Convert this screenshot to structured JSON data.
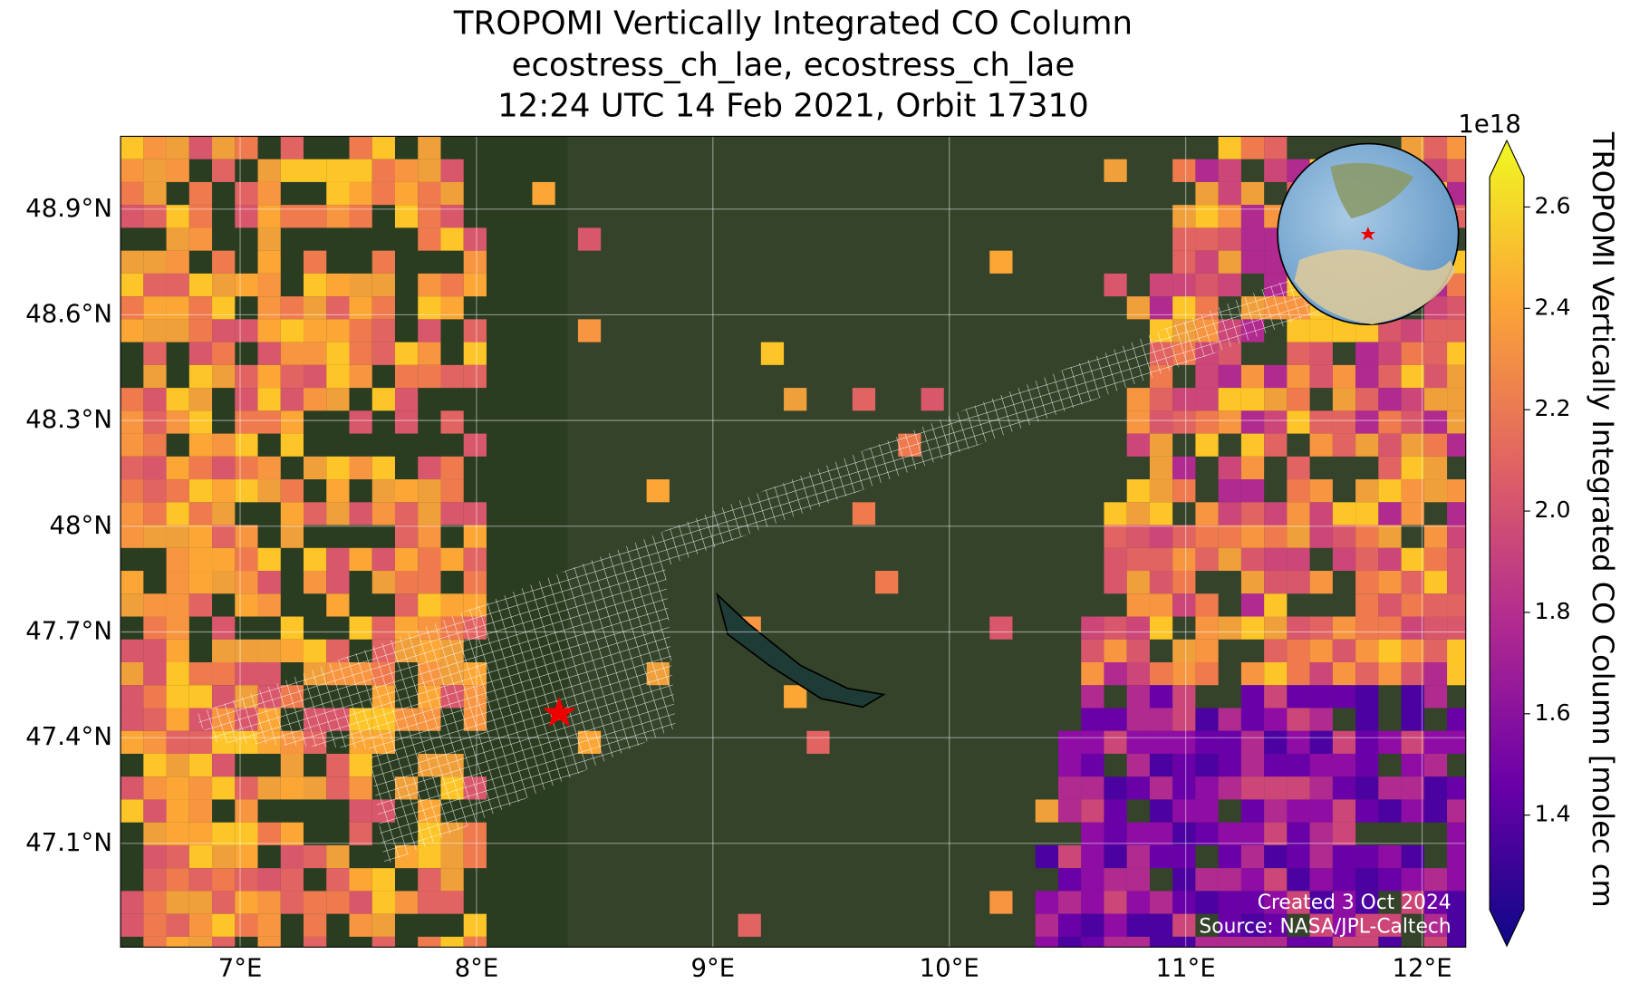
{
  "title": [
    "TROPOMI Vertically Integrated CO Column",
    "ecostress_ch_lae, ecostress_ch_lae",
    "12:24 UTC 14 Feb 2021, Orbit 17310"
  ],
  "map": {
    "xticks": [
      "7°E",
      "8°E",
      "9°E",
      "10°E",
      "11°E",
      "12°E"
    ],
    "yticks": [
      "48.9°N",
      "48.6°N",
      "48.3°N",
      "48°N",
      "47.7°N",
      "47.4°N",
      "47.1°N"
    ]
  },
  "colorbar": {
    "label": "TROPOMI Vertically Integrated CO Column [molec cm",
    "exponent": "1e18",
    "ticks": [
      "2.6",
      "2.4",
      "2.2",
      "2.0",
      "1.8",
      "1.6",
      "1.4"
    ]
  },
  "credits": [
    "Created 3 Oct 2024",
    "Source: NASA/JPL-Caltech"
  ]
}
